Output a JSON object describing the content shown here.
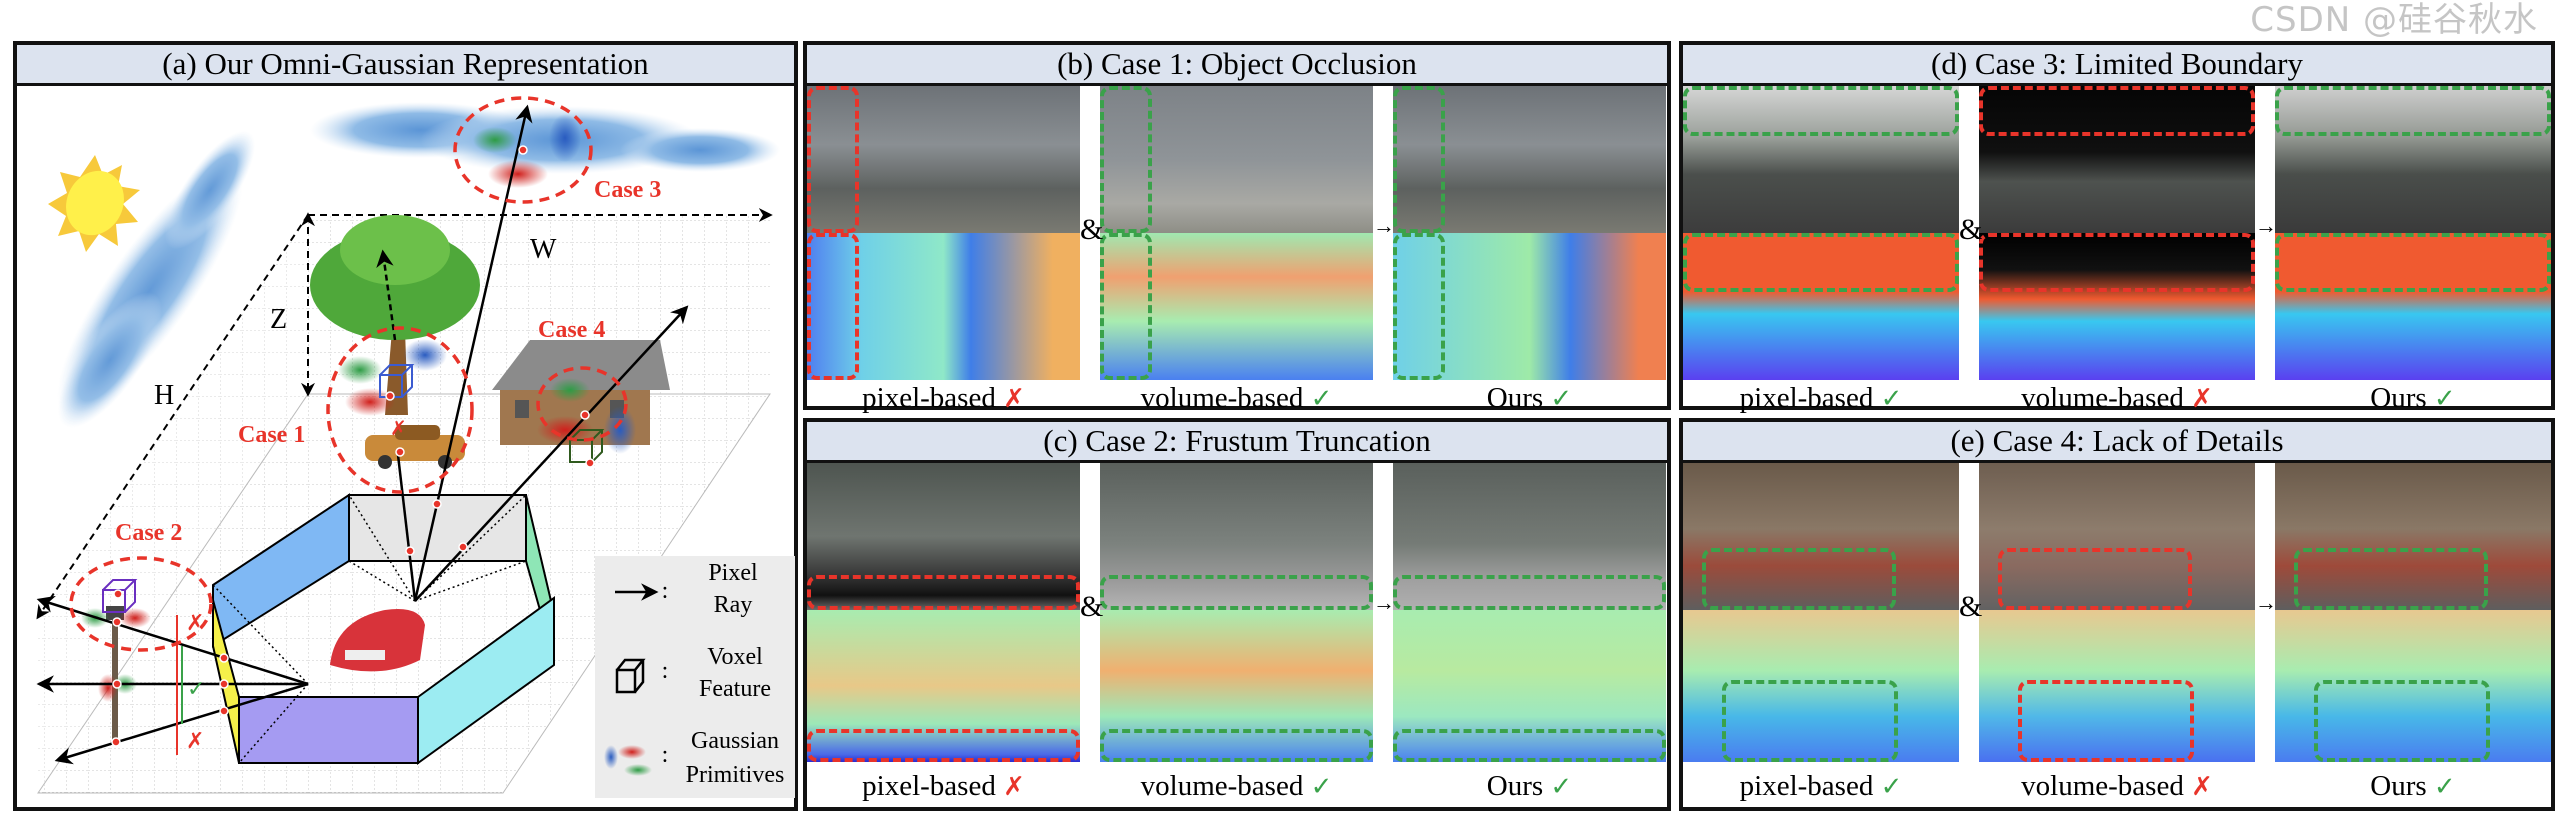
{
  "panel_a": {
    "title": "(a) Our Omni-Gaussian Representation",
    "case_labels": {
      "case1": "Case 1",
      "case2": "Case 2",
      "case3": "Case 3",
      "case4": "Case 4"
    },
    "axis_labels": {
      "h": "H",
      "w": "W",
      "z": "Z"
    },
    "marks": {
      "cross": "✗",
      "check": "✓"
    },
    "legend": [
      {
        "icon": "arrow-icon",
        "line1": "Pixel",
        "line2": "Ray"
      },
      {
        "icon": "voxel-cube-icon",
        "line1": "Voxel",
        "line2": "Feature"
      },
      {
        "icon": "gaussian-blobs-icon",
        "line1": "Gaussian",
        "line2": "Primitives"
      }
    ],
    "legend_separator": ":"
  },
  "panels": [
    {
      "id": "b",
      "title": "(b) Case 1: Object Occlusion",
      "amp": "&",
      "arrow": "→",
      "columns": [
        {
          "label": "pixel-based",
          "mark": "✗",
          "status": "fail"
        },
        {
          "label": "volume-based",
          "mark": "✓",
          "status": "ok"
        },
        {
          "label": "Ours",
          "mark": "✓",
          "status": "ok"
        }
      ]
    },
    {
      "id": "c",
      "title": "(c) Case 2: Frustum Truncation",
      "amp": "&",
      "arrow": "→",
      "columns": [
        {
          "label": "pixel-based",
          "mark": "✗",
          "status": "fail"
        },
        {
          "label": "volume-based",
          "mark": "✓",
          "status": "ok"
        },
        {
          "label": "Ours",
          "mark": "✓",
          "status": "ok"
        }
      ]
    },
    {
      "id": "d",
      "title": "(d) Case 3: Limited Boundary",
      "amp": "&",
      "arrow": "→",
      "columns": [
        {
          "label": "pixel-based",
          "mark": "✓",
          "status": "ok"
        },
        {
          "label": "volume-based",
          "mark": "✗",
          "status": "fail"
        },
        {
          "label": "Ours",
          "mark": "✓",
          "status": "ok"
        }
      ]
    },
    {
      "id": "e",
      "title": "(e) Case 4: Lack of Details",
      "amp": "&",
      "arrow": "→",
      "columns": [
        {
          "label": "pixel-based",
          "mark": "✓",
          "status": "ok"
        },
        {
          "label": "volume-based",
          "mark": "✗",
          "status": "fail"
        },
        {
          "label": "Ours",
          "mark": "✓",
          "status": "ok"
        }
      ]
    }
  ],
  "colors": {
    "fail": "#e8342a",
    "ok": "#3aa24a",
    "title_bar": "#dce3ef"
  },
  "watermark": "CSDN @硅谷秋水"
}
